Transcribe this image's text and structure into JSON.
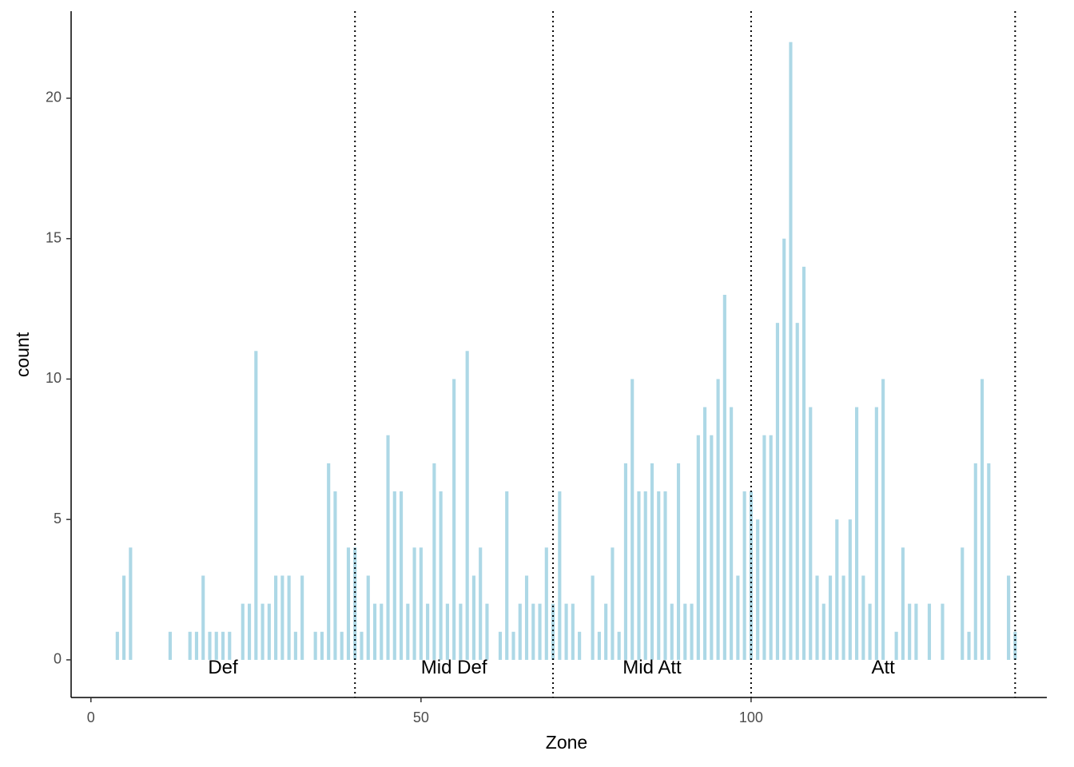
{
  "chart_data": {
    "type": "bar",
    "x_label": "Zone",
    "y_label": "count",
    "x": [
      4,
      5,
      6,
      12,
      15,
      16,
      17,
      18,
      19,
      20,
      21,
      23,
      24,
      25,
      26,
      27,
      28,
      29,
      30,
      31,
      32,
      34,
      35,
      36,
      37,
      38,
      39,
      40,
      41,
      42,
      43,
      44,
      45,
      46,
      47,
      48,
      49,
      50,
      51,
      52,
      53,
      54,
      55,
      56,
      57,
      58,
      59,
      60,
      62,
      63,
      64,
      65,
      66,
      67,
      68,
      69,
      70,
      71,
      72,
      73,
      74,
      76,
      77,
      78,
      79,
      80,
      81,
      82,
      83,
      84,
      85,
      86,
      87,
      88,
      89,
      90,
      91,
      92,
      93,
      94,
      95,
      96,
      97,
      98,
      99,
      100,
      101,
      102,
      103,
      104,
      105,
      106,
      107,
      108,
      109,
      110,
      111,
      112,
      113,
      114,
      115,
      116,
      117,
      118,
      119,
      120,
      122,
      123,
      124,
      125,
      127,
      129,
      132,
      133,
      134,
      135,
      136,
      139,
      140
    ],
    "values": [
      1,
      3,
      4,
      1,
      1,
      1,
      3,
      1,
      1,
      1,
      1,
      2,
      2,
      11,
      2,
      2,
      3,
      3,
      3,
      1,
      3,
      1,
      1,
      7,
      6,
      1,
      4,
      4,
      1,
      3,
      2,
      2,
      8,
      6,
      6,
      2,
      4,
      4,
      2,
      7,
      6,
      2,
      10,
      2,
      11,
      3,
      4,
      2,
      1,
      6,
      1,
      2,
      3,
      2,
      2,
      4,
      2,
      6,
      2,
      2,
      1,
      3,
      1,
      2,
      4,
      1,
      7,
      10,
      6,
      6,
      7,
      6,
      6,
      2,
      7,
      2,
      2,
      8,
      9,
      8,
      10,
      13,
      9,
      3,
      6,
      6,
      5,
      8,
      8,
      12,
      15,
      22,
      12,
      14,
      9,
      3,
      2,
      3,
      5,
      3,
      5,
      9,
      3,
      2,
      9,
      10,
      1,
      4,
      2,
      2,
      2,
      2,
      4,
      1,
      7,
      10,
      7,
      3,
      1
    ],
    "color": "#add8e6",
    "xlim": [
      -3,
      144.8
    ],
    "ylim": [
      -1.34,
      23.1
    ],
    "xticks": [
      0,
      50,
      100
    ],
    "yticks": [
      0,
      5,
      10,
      15,
      20
    ],
    "zone_boundaries": [
      40,
      70,
      100,
      140
    ],
    "zone_labels": [
      "Def",
      "Mid Def",
      "Mid Att",
      "Att"
    ],
    "grid": false
  }
}
